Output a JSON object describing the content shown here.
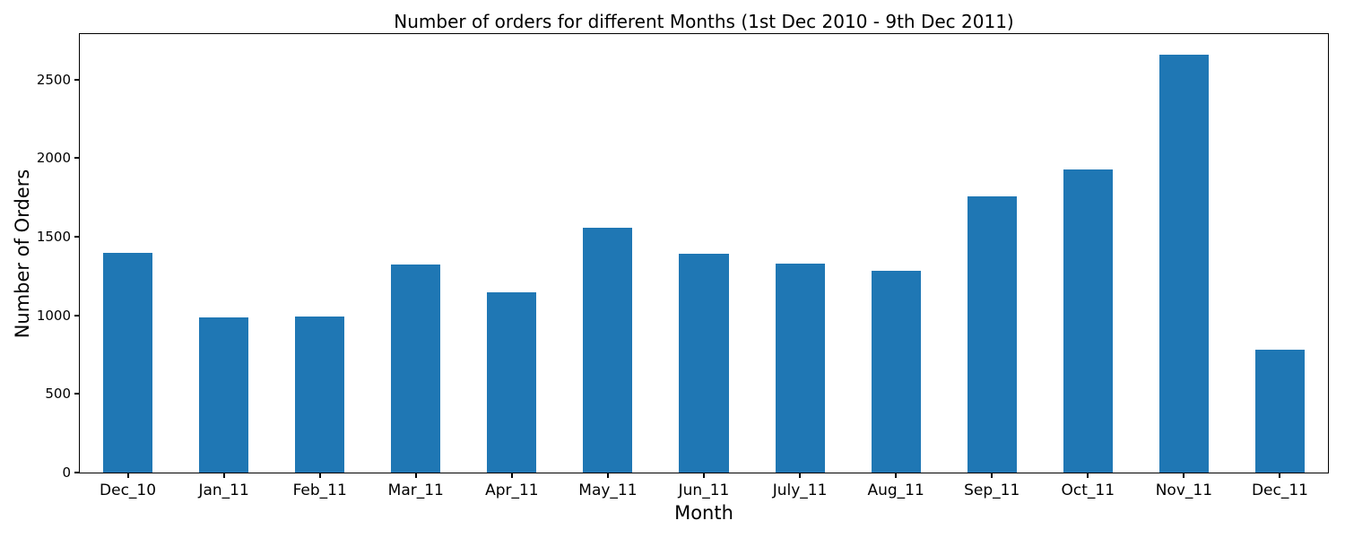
{
  "chart_data": {
    "type": "bar",
    "title": "Number of orders for different Months (1st Dec 2010 - 9th Dec 2011)",
    "xlabel": "Month",
    "ylabel": "Number of Orders",
    "categories": [
      "Dec_10",
      "Jan_11",
      "Feb_11",
      "Mar_11",
      "Apr_11",
      "May_11",
      "Jun_11",
      "July_11",
      "Aug_11",
      "Sep_11",
      "Oct_11",
      "Nov_11",
      "Dec_11"
    ],
    "values": [
      1400,
      987,
      993,
      1321,
      1149,
      1555,
      1393,
      1331,
      1281,
      1756,
      1929,
      2658,
      783
    ],
    "yticks": [
      0,
      500,
      1000,
      1500,
      2000,
      2500
    ],
    "ylim": [
      0,
      2790
    ],
    "bar_color": "#1f77b4",
    "bar_width_fraction": 0.5,
    "grid": false,
    "legend_position": "none",
    "text_color": "#000000",
    "background_color": "#ffffff"
  }
}
